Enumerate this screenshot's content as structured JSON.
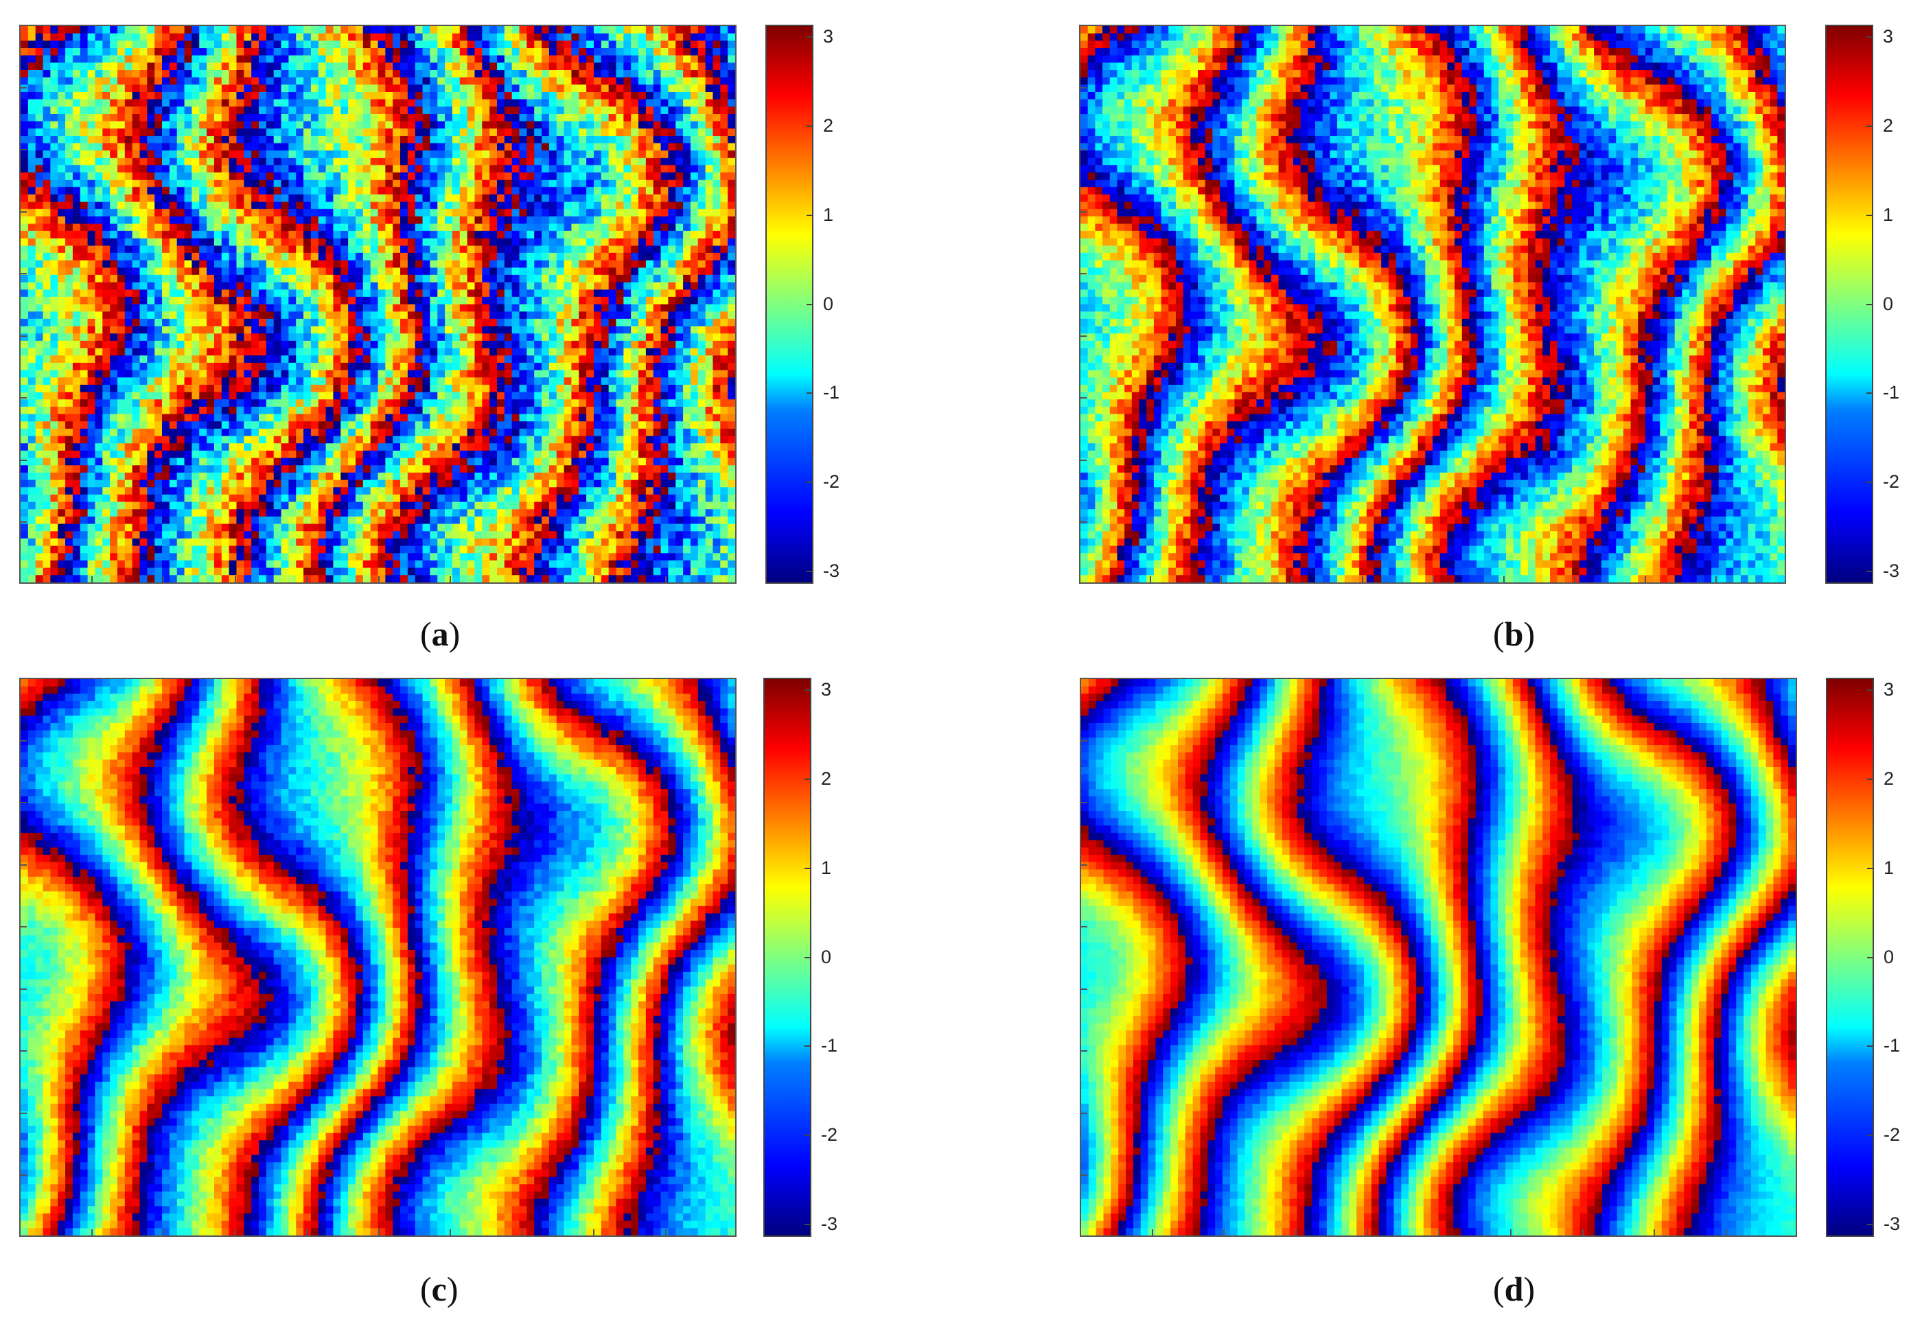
{
  "chart_data": [
    {
      "type": "heatmap",
      "label": "a",
      "colorbar": {
        "colormap": "jet",
        "range": [
          -3.1416,
          3.1416
        ],
        "ticks": [
          3,
          2,
          1,
          0,
          -1,
          -2,
          -3
        ]
      },
      "noise": "high"
    },
    {
      "type": "heatmap",
      "label": "b",
      "colorbar": {
        "colormap": "jet",
        "range": [
          -3.1416,
          3.1416
        ],
        "ticks": [
          3,
          2,
          1,
          0,
          -1,
          -2,
          -3
        ]
      },
      "noise": "medium"
    },
    {
      "type": "heatmap",
      "label": "c",
      "colorbar": {
        "colormap": "jet",
        "range": [
          -3.1416,
          3.1416
        ],
        "ticks": [
          3,
          2,
          1,
          0,
          -1,
          -2,
          -3
        ]
      },
      "noise": "low"
    },
    {
      "type": "heatmap",
      "label": "d",
      "colorbar": {
        "colormap": "jet",
        "range": [
          -3.1416,
          3.1416
        ],
        "ticks": [
          3,
          2,
          1,
          0,
          -1,
          -2,
          -3
        ]
      },
      "noise": "lowest"
    }
  ],
  "captions": [
    "(a)",
    "(b)",
    "(c)",
    "(d)"
  ]
}
